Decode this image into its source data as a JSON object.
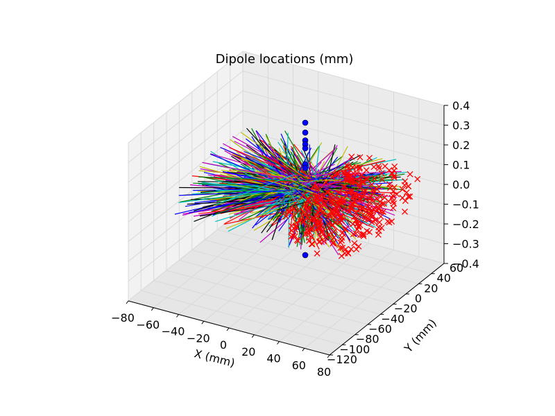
{
  "chart_data": {
    "type": "scatter",
    "projection": "3d",
    "title": "Dipole locations (mm)",
    "xlabel": "X (mm)",
    "ylabel": "Y (mm)",
    "zlabel": "",
    "xlim": [
      -80,
      80
    ],
    "ylim": [
      -120,
      60
    ],
    "zlim": [
      -0.4,
      0.4
    ],
    "xticks": [
      -80,
      -60,
      -40,
      -20,
      0,
      20,
      40,
      60,
      80
    ],
    "yticks": [
      -120,
      -100,
      -80,
      -60,
      -40,
      -20,
      0,
      20,
      40,
      60
    ],
    "zticks": [
      -0.4,
      -0.3,
      -0.2,
      -0.1,
      0.0,
      0.1,
      0.2,
      0.3,
      0.4
    ],
    "xtick_labels": [
      "−80",
      "−60",
      "−40",
      "−20",
      "0",
      "20",
      "40",
      "60",
      "80"
    ],
    "ytick_labels": [
      "−120",
      "−100",
      "−80",
      "−60",
      "−40",
      "−20",
      "0",
      "20",
      "40",
      "60"
    ],
    "ztick_labels": [
      "−0.4",
      "−0.3",
      "−0.2",
      "−0.1",
      "0.0",
      "0.1",
      "0.2",
      "0.3",
      "0.4"
    ],
    "grid": true,
    "series": [
      {
        "marker": "o",
        "color": "#0000ff",
        "points": [
          {
            "x": 0,
            "y": 0,
            "z": 0.33
          },
          {
            "x": 0,
            "y": 0,
            "z": 0.28
          },
          {
            "x": 0,
            "y": 0,
            "z": 0.24
          },
          {
            "x": 0,
            "y": 0,
            "z": 0.22
          },
          {
            "x": 0,
            "y": 0,
            "z": 0.2
          },
          {
            "x": 0,
            "y": 0,
            "z": 0.12
          },
          {
            "x": 0,
            "y": 0,
            "z": 0.1
          },
          {
            "x": 0,
            "y": 0,
            "z": -0.34
          }
        ]
      },
      {
        "marker": "x",
        "color": "#ff0000",
        "spread": {
          "x": [
            10,
            70
          ],
          "y": [
            -70,
            50
          ],
          "z": [
            -0.08,
            0.08
          ]
        },
        "count": 320
      },
      {
        "marker": "line",
        "colors": [
          "#0000ff",
          "#008000",
          "#ff0000",
          "#00bfbf",
          "#bf00bf",
          "#bfbf00",
          "#000000"
        ],
        "spread": {
          "x": [
            -70,
            60
          ],
          "y": [
            -70,
            50
          ],
          "z": [
            -0.12,
            0.12
          ]
        },
        "count": 900
      }
    ]
  }
}
